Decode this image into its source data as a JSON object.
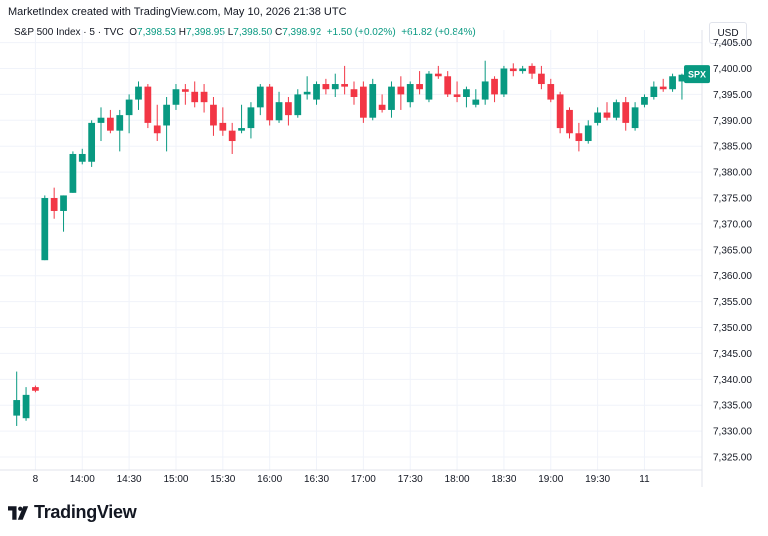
{
  "header": {
    "credit": "MarketIndex created with TradingView.com, May 10, 2026 21:38 UTC"
  },
  "legend": {
    "symbol": "S&P 500 Index · 5 · TVC",
    "open_label": "O",
    "open": "7,398.53",
    "high_label": "H",
    "high": "7,398.95",
    "low_label": "L",
    "low": "7,398.50",
    "close_label": "C",
    "close": "7,398.92",
    "change": "+1.50 (+0.02%)",
    "change2": "+61.82 (+0.84%)"
  },
  "currency": "USD",
  "price_tag": "SPX",
  "brand": "TradingView",
  "colors": {
    "up": "#089981",
    "down": "#f23645",
    "grid": "#f0f3fa",
    "text": "#131722"
  },
  "chart_data": {
    "type": "candlestick",
    "interval": "5",
    "y_ticks": [
      "7,325.00",
      "7,330.00",
      "7,335.00",
      "7,340.00",
      "7,345.00",
      "7,350.00",
      "7,355.00",
      "7,360.00",
      "7,365.00",
      "7,370.00",
      "7,375.00",
      "7,380.00",
      "7,385.00",
      "7,390.00",
      "7,395.00",
      "7,400.00",
      "7,405.00"
    ],
    "y_tick_values": [
      7325,
      7330,
      7335,
      7340,
      7345,
      7350,
      7355,
      7360,
      7365,
      7370,
      7375,
      7380,
      7385,
      7390,
      7395,
      7400,
      7405
    ],
    "ylim": [
      7322.5,
      7405.5
    ],
    "x_ticks": [
      "8",
      "14:00",
      "14:30",
      "15:00",
      "15:30",
      "16:00",
      "16:30",
      "17:00",
      "17:30",
      "18:00",
      "18:30",
      "19:00",
      "19:30",
      "11"
    ],
    "x_tick_index": [
      2,
      7,
      12,
      17,
      22,
      27,
      32,
      37,
      42,
      47,
      52,
      57,
      62,
      67
    ],
    "grid": true,
    "last_price": 7398.92,
    "candles": [
      {
        "o": 7333,
        "h": 7341.5,
        "l": 7331,
        "c": 7336
      },
      {
        "o": 7332.5,
        "h": 7338.5,
        "l": 7332,
        "c": 7337
      },
      {
        "o": 7338.5,
        "h": 7338.8,
        "l": 7337.5,
        "c": 7337.8
      },
      {
        "o": 7363,
        "h": 7375.5,
        "l": 7363,
        "c": 7375
      },
      {
        "o": 7375,
        "h": 7377,
        "l": 7371,
        "c": 7372.5
      },
      {
        "o": 7372.5,
        "h": 7375.5,
        "l": 7368.5,
        "c": 7375.5
      },
      {
        "o": 7376,
        "h": 7384,
        "l": 7376,
        "c": 7383.5
      },
      {
        "o": 7382,
        "h": 7384.5,
        "l": 7381.5,
        "c": 7383.5
      },
      {
        "o": 7382,
        "h": 7390,
        "l": 7381,
        "c": 7389.5
      },
      {
        "o": 7389.5,
        "h": 7392.5,
        "l": 7386,
        "c": 7390.5
      },
      {
        "o": 7390.5,
        "h": 7392,
        "l": 7387.5,
        "c": 7388
      },
      {
        "o": 7388,
        "h": 7392,
        "l": 7384,
        "c": 7391
      },
      {
        "o": 7391,
        "h": 7395,
        "l": 7387.5,
        "c": 7394
      },
      {
        "o": 7394,
        "h": 7397.5,
        "l": 7392,
        "c": 7396.5
      },
      {
        "o": 7396.5,
        "h": 7397,
        "l": 7388.5,
        "c": 7389.5
      },
      {
        "o": 7389,
        "h": 7393,
        "l": 7386,
        "c": 7387.5
      },
      {
        "o": 7389,
        "h": 7394.5,
        "l": 7384,
        "c": 7393
      },
      {
        "o": 7393,
        "h": 7397,
        "l": 7392,
        "c": 7396
      },
      {
        "o": 7396,
        "h": 7397,
        "l": 7393,
        "c": 7395.5
      },
      {
        "o": 7395.5,
        "h": 7397.5,
        "l": 7392.5,
        "c": 7393.5
      },
      {
        "o": 7395.5,
        "h": 7397,
        "l": 7391.5,
        "c": 7393.5
      },
      {
        "o": 7393,
        "h": 7394.5,
        "l": 7387,
        "c": 7389
      },
      {
        "o": 7389.5,
        "h": 7392.5,
        "l": 7387,
        "c": 7388
      },
      {
        "o": 7388,
        "h": 7389.5,
        "l": 7383.5,
        "c": 7386
      },
      {
        "o": 7388,
        "h": 7393,
        "l": 7387.5,
        "c": 7388.5
      },
      {
        "o": 7388.5,
        "h": 7393.5,
        "l": 7386.5,
        "c": 7392.5
      },
      {
        "o": 7392.5,
        "h": 7397,
        "l": 7391,
        "c": 7396.5
      },
      {
        "o": 7396.5,
        "h": 7397,
        "l": 7389,
        "c": 7390
      },
      {
        "o": 7390,
        "h": 7395.5,
        "l": 7389.5,
        "c": 7393.5
      },
      {
        "o": 7393.5,
        "h": 7394.5,
        "l": 7389,
        "c": 7391
      },
      {
        "o": 7391,
        "h": 7396,
        "l": 7390.5,
        "c": 7395
      },
      {
        "o": 7395,
        "h": 7398.5,
        "l": 7394,
        "c": 7395.5
      },
      {
        "o": 7394,
        "h": 7397.5,
        "l": 7393,
        "c": 7397
      },
      {
        "o": 7397,
        "h": 7398,
        "l": 7395,
        "c": 7396
      },
      {
        "o": 7396,
        "h": 7399,
        "l": 7394.5,
        "c": 7397
      },
      {
        "o": 7397,
        "h": 7400.5,
        "l": 7395,
        "c": 7396.5
      },
      {
        "o": 7396,
        "h": 7397.5,
        "l": 7393,
        "c": 7394.5
      },
      {
        "o": 7396.5,
        "h": 7397.5,
        "l": 7389.5,
        "c": 7390.5
      },
      {
        "o": 7390.5,
        "h": 7398,
        "l": 7390,
        "c": 7397
      },
      {
        "o": 7393,
        "h": 7395,
        "l": 7391.5,
        "c": 7392
      },
      {
        "o": 7392,
        "h": 7397.5,
        "l": 7390.5,
        "c": 7396.5
      },
      {
        "o": 7396.5,
        "h": 7398.5,
        "l": 7392,
        "c": 7395
      },
      {
        "o": 7393.5,
        "h": 7397.5,
        "l": 7392.5,
        "c": 7397
      },
      {
        "o": 7397,
        "h": 7399.5,
        "l": 7395,
        "c": 7396
      },
      {
        "o": 7394,
        "h": 7399.5,
        "l": 7393.5,
        "c": 7399
      },
      {
        "o": 7399,
        "h": 7400.5,
        "l": 7398,
        "c": 7398.5
      },
      {
        "o": 7398.5,
        "h": 7399.5,
        "l": 7394.5,
        "c": 7395
      },
      {
        "o": 7395,
        "h": 7397.5,
        "l": 7393.5,
        "c": 7394.5
      },
      {
        "o": 7394.5,
        "h": 7396.5,
        "l": 7392.5,
        "c": 7396
      },
      {
        "o": 7393,
        "h": 7396,
        "l": 7392.5,
        "c": 7394
      },
      {
        "o": 7394,
        "h": 7401.5,
        "l": 7393,
        "c": 7397.5
      },
      {
        "o": 7398,
        "h": 7398.5,
        "l": 7393.5,
        "c": 7395
      },
      {
        "o": 7395,
        "h": 7400.5,
        "l": 7394.5,
        "c": 7400
      },
      {
        "o": 7400,
        "h": 7401,
        "l": 7398.5,
        "c": 7399.5
      },
      {
        "o": 7399.5,
        "h": 7400.5,
        "l": 7399,
        "c": 7400
      },
      {
        "o": 7400.5,
        "h": 7401,
        "l": 7398,
        "c": 7399
      },
      {
        "o": 7399,
        "h": 7400.5,
        "l": 7396,
        "c": 7397
      },
      {
        "o": 7397,
        "h": 7398,
        "l": 7393.5,
        "c": 7394
      },
      {
        "o": 7395,
        "h": 7395.5,
        "l": 7387.5,
        "c": 7388.5
      },
      {
        "o": 7392,
        "h": 7392.5,
        "l": 7386.5,
        "c": 7387.5
      },
      {
        "o": 7387.5,
        "h": 7389.5,
        "l": 7384,
        "c": 7386
      },
      {
        "o": 7386,
        "h": 7390,
        "l": 7385.5,
        "c": 7389
      },
      {
        "o": 7389.5,
        "h": 7392.5,
        "l": 7389,
        "c": 7391.5
      },
      {
        "o": 7391.5,
        "h": 7393.5,
        "l": 7390,
        "c": 7390.5
      },
      {
        "o": 7390.5,
        "h": 7394,
        "l": 7390,
        "c": 7393.5
      },
      {
        "o": 7393.5,
        "h": 7394.5,
        "l": 7388,
        "c": 7389.5
      },
      {
        "o": 7388.5,
        "h": 7393.5,
        "l": 7388,
        "c": 7392.5
      },
      {
        "o": 7393,
        "h": 7395,
        "l": 7392.5,
        "c": 7394.5
      },
      {
        "o": 7394.5,
        "h": 7397.5,
        "l": 7394,
        "c": 7396.5
      },
      {
        "o": 7396.5,
        "h": 7398,
        "l": 7395.5,
        "c": 7396
      },
      {
        "o": 7396,
        "h": 7399,
        "l": 7395.5,
        "c": 7398.5
      },
      {
        "o": 7397.5,
        "h": 7399,
        "l": 7394,
        "c": 7398.8
      },
      {
        "o": 7398.53,
        "h": 7398.95,
        "l": 7398.5,
        "c": 7398.92
      }
    ]
  }
}
